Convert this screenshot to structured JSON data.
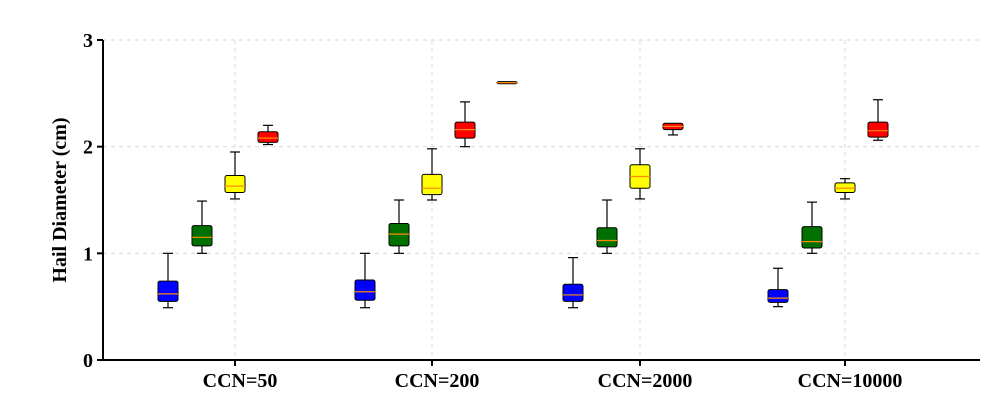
{
  "chart_data": {
    "type": "box",
    "ylabel": "Hail Diameter  (cm)",
    "xlabel": "",
    "ylim": [
      0,
      3
    ],
    "yticks": [
      "0",
      "1",
      "2",
      "3"
    ],
    "grid": true,
    "categories": [
      "CCN=50",
      "CCN=200",
      "CCN=2000",
      "CCN=10000"
    ],
    "series_colors": [
      "#0000ff",
      "#007000",
      "#ffff00",
      "#ff0000",
      "#ff8c00"
    ],
    "median_color": "#ff8c00",
    "groups": [
      {
        "category": "CCN=50",
        "boxes": [
          {
            "min": 0.49,
            "q1": 0.55,
            "median": 0.62,
            "q3": 0.74,
            "max": 1.0
          },
          {
            "min": 1.0,
            "q1": 1.07,
            "median": 1.15,
            "q3": 1.26,
            "max": 1.49
          },
          {
            "min": 1.51,
            "q1": 1.57,
            "median": 1.63,
            "q3": 1.73,
            "max": 1.95
          },
          {
            "min": 2.02,
            "q1": 2.04,
            "median": 2.08,
            "q3": 2.14,
            "max": 2.2
          }
        ]
      },
      {
        "category": "CCN=200",
        "boxes": [
          {
            "min": 0.49,
            "q1": 0.56,
            "median": 0.64,
            "q3": 0.75,
            "max": 1.0
          },
          {
            "min": 1.0,
            "q1": 1.07,
            "median": 1.18,
            "q3": 1.28,
            "max": 1.5
          },
          {
            "min": 1.5,
            "q1": 1.55,
            "median": 1.61,
            "q3": 1.74,
            "max": 1.98
          },
          {
            "min": 2.0,
            "q1": 2.08,
            "median": 2.16,
            "q3": 2.23,
            "max": 2.42
          },
          {
            "min": 2.59,
            "q1": 2.59,
            "median": 2.6,
            "q3": 2.61,
            "max": 2.61
          }
        ]
      },
      {
        "category": "CCN=2000",
        "boxes": [
          {
            "min": 0.49,
            "q1": 0.55,
            "median": 0.61,
            "q3": 0.71,
            "max": 0.96
          },
          {
            "min": 1.0,
            "q1": 1.06,
            "median": 1.12,
            "q3": 1.24,
            "max": 1.5
          },
          {
            "min": 1.51,
            "q1": 1.61,
            "median": 1.72,
            "q3": 1.83,
            "max": 1.98
          },
          {
            "min": 2.11,
            "q1": 2.16,
            "median": 2.19,
            "q3": 2.22,
            "max": 2.22
          }
        ]
      },
      {
        "category": "CCN=10000",
        "boxes": [
          {
            "min": 0.5,
            "q1": 0.54,
            "median": 0.58,
            "q3": 0.66,
            "max": 0.86
          },
          {
            "min": 1.0,
            "q1": 1.05,
            "median": 1.11,
            "q3": 1.25,
            "max": 1.48
          },
          {
            "min": 1.51,
            "q1": 1.57,
            "median": 1.61,
            "q3": 1.66,
            "max": 1.7
          },
          {
            "min": 2.06,
            "q1": 2.09,
            "median": 2.15,
            "q3": 2.23,
            "max": 2.44
          }
        ]
      }
    ]
  }
}
